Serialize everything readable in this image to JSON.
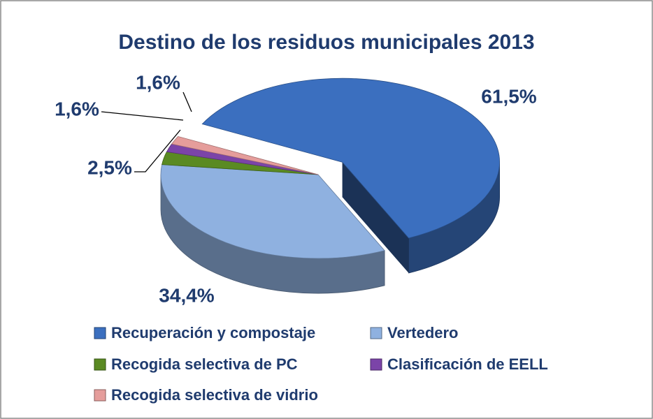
{
  "chart_data": {
    "type": "pie3d",
    "title": "Destino de los residuos municipales   2013",
    "categories": [
      "Recuperación y compostaje",
      "Vertedero",
      "Recogida selectiva de PC",
      "Clasificación de EELL",
      "Recogida selectiva de vidrio"
    ],
    "values": [
      61.5,
      34.4,
      2.5,
      1.6,
      1.6
    ],
    "value_labels": [
      "61,5%",
      "34,4%",
      "2,5%",
      "1,6%",
      "1,6%"
    ],
    "colors": [
      "#3b6fbf",
      "#8fb1e0",
      "#5a8a22",
      "#7b44a8",
      "#e59d9b"
    ],
    "legend": "bottom"
  }
}
